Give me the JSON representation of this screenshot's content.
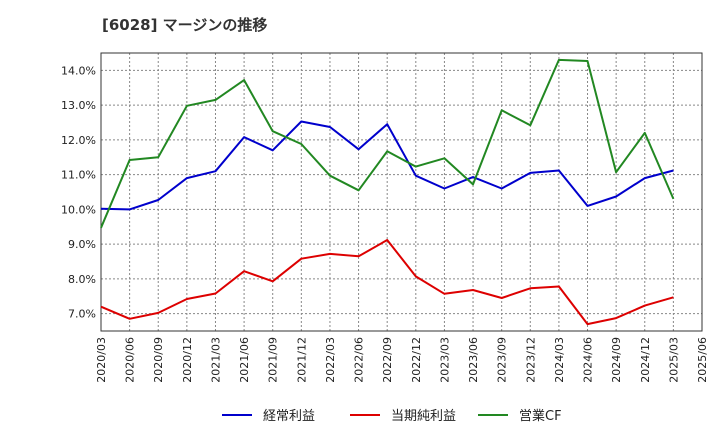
{
  "chart_data": {
    "type": "line",
    "title": "[6028]  マージンの推移",
    "xlabel": "",
    "ylabel": "",
    "ylim": [
      6.5,
      14.5
    ],
    "yticks": [
      7,
      8,
      9,
      10,
      11,
      12,
      13,
      14
    ],
    "ytick_labels": [
      "7.0%",
      "8.0%",
      "9.0%",
      "10.0%",
      "11.0%",
      "12.0%",
      "13.0%",
      "14.0%"
    ],
    "x": [
      "2020/03",
      "2020/06",
      "2020/09",
      "2020/12",
      "2021/03",
      "2021/06",
      "2021/09",
      "2021/12",
      "2022/03",
      "2022/06",
      "2022/09",
      "2022/12",
      "2023/03",
      "2023/06",
      "2023/09",
      "2023/12",
      "2024/03",
      "2024/06",
      "2024/09",
      "2024/12",
      "2025/03",
      "2025/06"
    ],
    "grid": true,
    "legend_position": "bottom",
    "series": [
      {
        "name": "経常利益",
        "color": "#0000cc",
        "values": [
          10.02,
          10.0,
          10.27,
          10.9,
          11.1,
          12.08,
          11.7,
          12.53,
          12.37,
          11.73,
          12.45,
          10.97,
          10.6,
          10.93,
          10.6,
          11.05,
          11.12,
          10.1,
          10.37,
          10.9,
          11.12,
          null
        ]
      },
      {
        "name": "当期純利益",
        "color": "#dd0000",
        "values": [
          7.2,
          6.85,
          7.02,
          7.42,
          7.58,
          8.22,
          7.93,
          8.58,
          8.72,
          8.65,
          9.12,
          8.07,
          7.57,
          7.68,
          7.45,
          7.73,
          7.78,
          6.7,
          6.87,
          7.23,
          7.47,
          null
        ]
      },
      {
        "name": "営業CF",
        "color": "#228822",
        "values": [
          9.47,
          11.42,
          11.5,
          12.98,
          13.15,
          13.72,
          12.25,
          11.88,
          10.97,
          10.55,
          11.67,
          11.23,
          11.47,
          10.72,
          12.85,
          12.42,
          14.3,
          14.27,
          11.07,
          12.2,
          10.3,
          null
        ]
      }
    ]
  }
}
